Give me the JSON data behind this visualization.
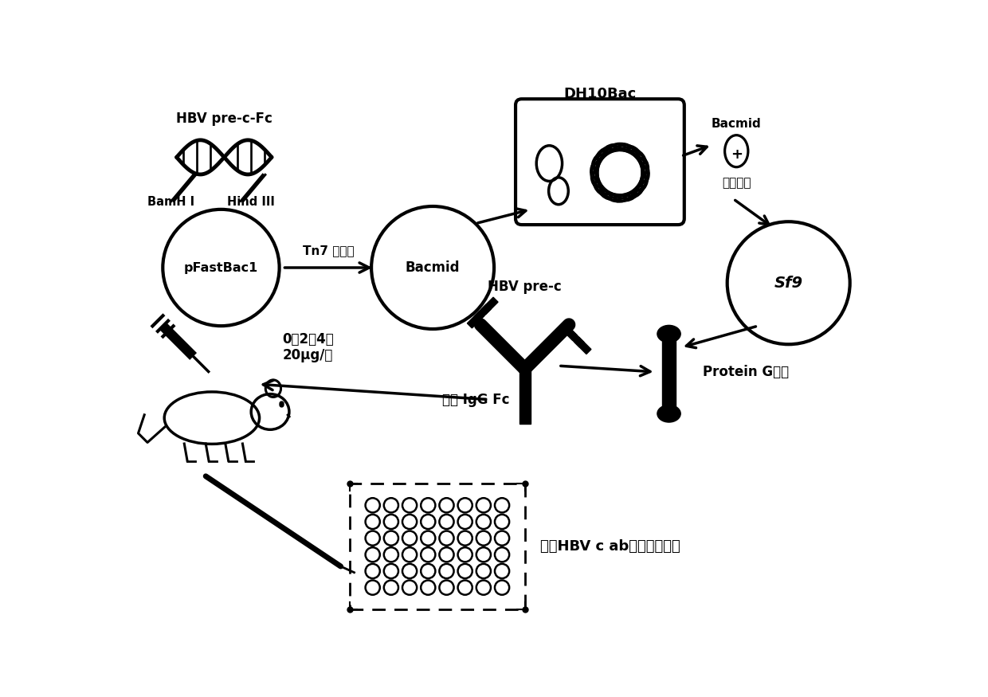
{
  "bg_color": "#ffffff",
  "text_color": "#000000",
  "figsize": [
    12.4,
    8.75
  ],
  "dpi": 100,
  "labels": {
    "hbv_pre_c_fc": "HBV pre-c-Fc",
    "bamh1": "BamH I",
    "hind3": "Hind III",
    "pfastbac1": "pFastBac1",
    "tn7": "Tn7 转座子",
    "bacmid": "Bacmid",
    "dh10bac": "DH10Bac",
    "bacmid2": "Bacmid",
    "transfection": "转染试剂",
    "sf9": "Sf9",
    "hbv_pre_c": "HBV pre-c",
    "protein_g": "Protein G纯化",
    "mouse_igg": "小鼠 IgG Fc",
    "dose": "0，2，4周\n20μg/鼠",
    "elisa": "血清HBV c ab免疫酶联反应",
    "plus": "+"
  }
}
